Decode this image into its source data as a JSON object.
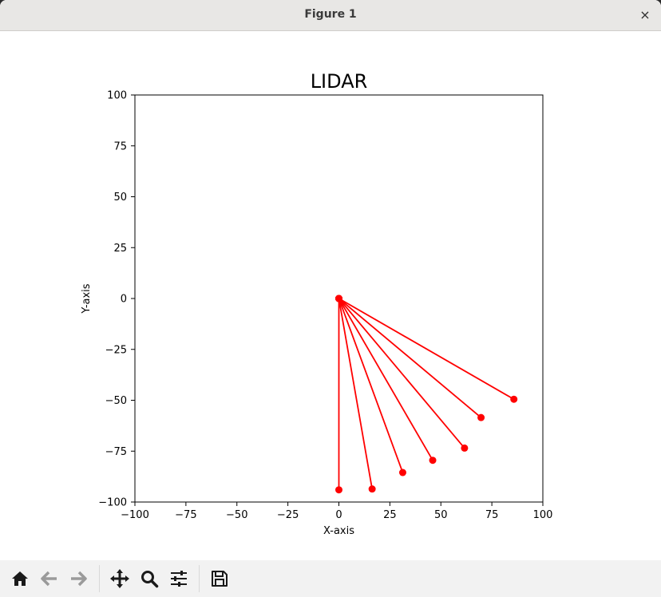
{
  "window": {
    "title": "Figure 1",
    "close_glyph": "×"
  },
  "toolbar": {
    "buttons": [
      {
        "name": "home-icon"
      },
      {
        "name": "back-arrow-icon"
      },
      {
        "name": "forward-arrow-icon"
      },
      {
        "name": "pan-move-icon"
      },
      {
        "name": "zoom-magnifier-icon"
      },
      {
        "name": "configure-subplots-icon"
      },
      {
        "name": "save-disk-icon"
      }
    ]
  },
  "chart_data": {
    "type": "line",
    "title": "LIDAR",
    "xlabel": "X-axis",
    "ylabel": "Y-axis",
    "xlim": [
      -100,
      100
    ],
    "ylim": [
      -100,
      100
    ],
    "xticks": [
      -100,
      -75,
      -50,
      -25,
      0,
      25,
      50,
      75,
      100
    ],
    "yticks": [
      -100,
      -75,
      -50,
      -25,
      0,
      25,
      50,
      75,
      100
    ],
    "xtick_labels": [
      "−100",
      "−75",
      "−50",
      "−25",
      "0",
      "25",
      "50",
      "75",
      "100"
    ],
    "ytick_labels": [
      "−100",
      "−75",
      "−50",
      "−25",
      "0",
      "25",
      "50",
      "75",
      "100"
    ],
    "grid": false,
    "color": "#ff0000",
    "origin": [
      0,
      0
    ],
    "endpoints": [
      [
        0,
        -94
      ],
      [
        16.3,
        -93.6
      ],
      [
        31.3,
        -85.5
      ],
      [
        46,
        -79.5
      ],
      [
        61.6,
        -73.5
      ],
      [
        69.7,
        -58.5
      ],
      [
        85.8,
        -49.5
      ]
    ]
  }
}
